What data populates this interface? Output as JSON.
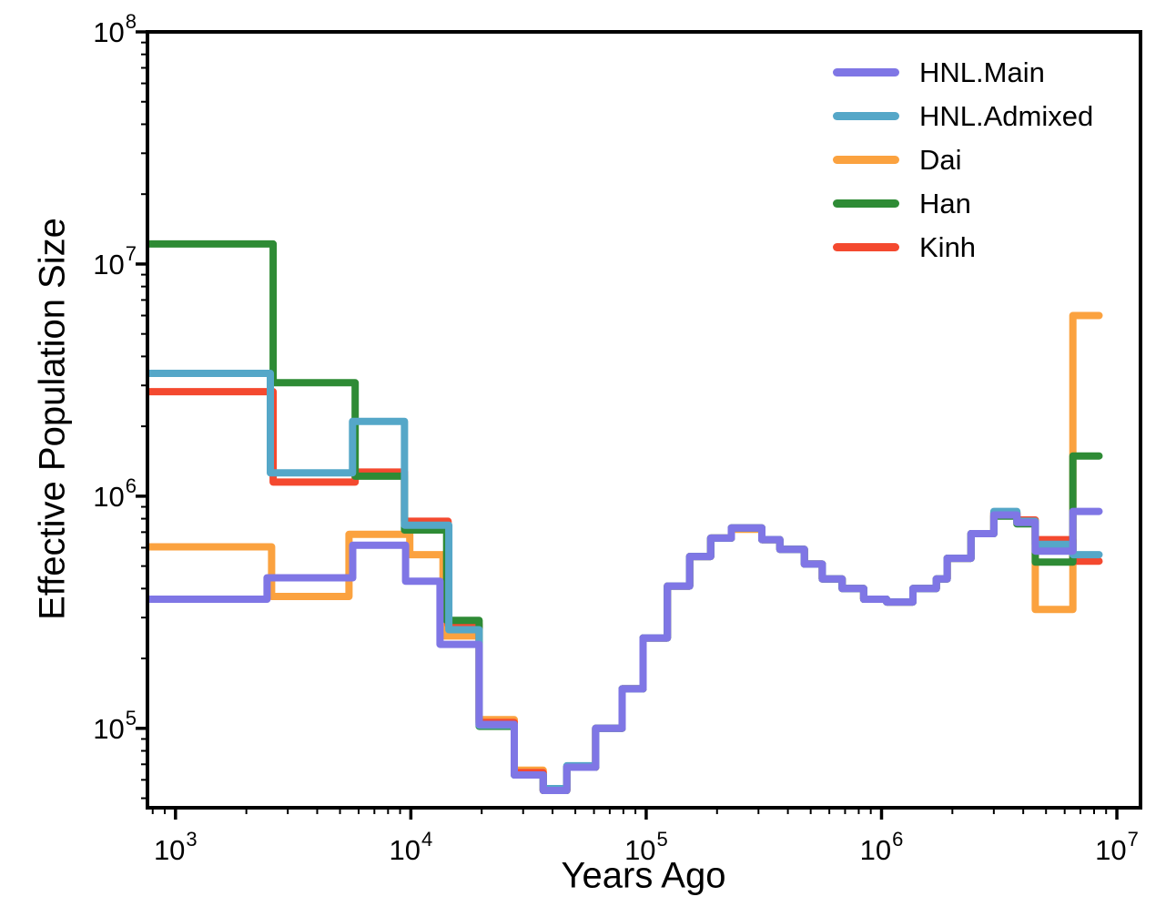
{
  "figure": {
    "background": "#ffffff"
  },
  "chart_data": {
    "type": "line",
    "subtype": "step-after",
    "title": "",
    "xlabel": "Years Ago",
    "ylabel": "Effective Population Size",
    "x_scale": "log",
    "y_scale": "log",
    "grid": false,
    "legend_position": "upper right",
    "xlim": [
      760,
      12600000
    ],
    "ylim": [
      45500,
      100000000
    ],
    "x_major_ticks": [
      1000,
      10000,
      100000,
      1000000,
      10000000
    ],
    "x_tick_labels": [
      {
        "base": "10",
        "exp": "3"
      },
      {
        "base": "10",
        "exp": "4"
      },
      {
        "base": "10",
        "exp": "5"
      },
      {
        "base": "10",
        "exp": "6"
      },
      {
        "base": "10",
        "exp": "7"
      }
    ],
    "y_major_ticks": [
      100000,
      1000000,
      10000000,
      100000000
    ],
    "y_tick_labels": [
      {
        "base": "10",
        "exp": "5"
      },
      {
        "base": "10",
        "exp": "6"
      },
      {
        "base": "10",
        "exp": "7"
      },
      {
        "base": "10",
        "exp": "8"
      }
    ],
    "t_end": 8400000,
    "series": [
      {
        "name": "HNL.Main",
        "color": "#7F76E5",
        "points": [
          [
            760,
            360000
          ],
          [
            2450,
            445000
          ],
          [
            5660,
            615000
          ],
          [
            9500,
            430000
          ],
          [
            13300,
            230000
          ],
          [
            19500,
            104000
          ],
          [
            27500,
            63000
          ],
          [
            36500,
            54000
          ],
          [
            46000,
            68000
          ],
          [
            61000,
            100000
          ],
          [
            79000,
            148000
          ],
          [
            97000,
            245000
          ],
          [
            123000,
            410000
          ],
          [
            153000,
            550000
          ],
          [
            188000,
            660000
          ],
          [
            230000,
            730000
          ],
          [
            310000,
            650000
          ],
          [
            370000,
            590000
          ],
          [
            470000,
            510000
          ],
          [
            560000,
            440000
          ],
          [
            680000,
            400000
          ],
          [
            840000,
            360000
          ],
          [
            1050000,
            350000
          ],
          [
            1360000,
            400000
          ],
          [
            1710000,
            440000
          ],
          [
            1900000,
            540000
          ],
          [
            2400000,
            690000
          ],
          [
            3000000,
            830000
          ],
          [
            3760000,
            770000
          ],
          [
            4500000,
            580000
          ],
          [
            6500000,
            860000
          ]
        ]
      },
      {
        "name": "HNL.Admixed",
        "color": "#55A7C8",
        "points": [
          [
            760,
            3380000
          ],
          [
            2530,
            1260000
          ],
          [
            5650,
            2100000
          ],
          [
            9400,
            750000
          ],
          [
            14500,
            266000
          ],
          [
            19500,
            103000
          ],
          [
            27500,
            63000
          ],
          [
            36500,
            55000
          ],
          [
            46000,
            69000
          ],
          [
            61000,
            100000
          ],
          [
            79000,
            148000
          ],
          [
            97000,
            245000
          ],
          [
            123000,
            410000
          ],
          [
            153000,
            550000
          ],
          [
            188000,
            660000
          ],
          [
            230000,
            730000
          ],
          [
            310000,
            650000
          ],
          [
            370000,
            590000
          ],
          [
            470000,
            510000
          ],
          [
            560000,
            440000
          ],
          [
            680000,
            400000
          ],
          [
            840000,
            360000
          ],
          [
            1050000,
            350000
          ],
          [
            1360000,
            400000
          ],
          [
            1710000,
            440000
          ],
          [
            1900000,
            540000
          ],
          [
            2400000,
            690000
          ],
          [
            3000000,
            860000
          ],
          [
            3760000,
            780000
          ],
          [
            4500000,
            620000
          ],
          [
            6500000,
            560000
          ]
        ]
      },
      {
        "name": "Dai",
        "color": "#FBA23F",
        "points": [
          [
            760,
            605000
          ],
          [
            2560,
            370000
          ],
          [
            5460,
            685000
          ],
          [
            9900,
            560000
          ],
          [
            13700,
            250000
          ],
          [
            19500,
            109000
          ],
          [
            27500,
            66000
          ],
          [
            36500,
            54000
          ],
          [
            46000,
            68000
          ],
          [
            61000,
            100000
          ],
          [
            79000,
            148000
          ],
          [
            97000,
            245000
          ],
          [
            123000,
            410000
          ],
          [
            153000,
            550000
          ],
          [
            188000,
            660000
          ],
          [
            230000,
            720000
          ],
          [
            310000,
            650000
          ],
          [
            370000,
            590000
          ],
          [
            470000,
            510000
          ],
          [
            560000,
            440000
          ],
          [
            680000,
            400000
          ],
          [
            840000,
            360000
          ],
          [
            1050000,
            350000
          ],
          [
            1360000,
            400000
          ],
          [
            1710000,
            440000
          ],
          [
            1900000,
            540000
          ],
          [
            2400000,
            690000
          ],
          [
            3000000,
            850000
          ],
          [
            3760000,
            770000
          ],
          [
            4500000,
            325000
          ],
          [
            6500000,
            6000000
          ]
        ]
      },
      {
        "name": "Han",
        "color": "#2E8B35",
        "points": [
          [
            760,
            12200000
          ],
          [
            2600,
            3080000
          ],
          [
            5800,
            1220000
          ],
          [
            9400,
            715000
          ],
          [
            14200,
            292000
          ],
          [
            19500,
            102000
          ],
          [
            27500,
            63000
          ],
          [
            36500,
            54000
          ],
          [
            46000,
            68000
          ],
          [
            61000,
            100000
          ],
          [
            79000,
            148000
          ],
          [
            97000,
            245000
          ],
          [
            123000,
            410000
          ],
          [
            153000,
            550000
          ],
          [
            188000,
            660000
          ],
          [
            230000,
            730000
          ],
          [
            310000,
            650000
          ],
          [
            370000,
            590000
          ],
          [
            470000,
            510000
          ],
          [
            560000,
            440000
          ],
          [
            680000,
            400000
          ],
          [
            840000,
            360000
          ],
          [
            1050000,
            350000
          ],
          [
            1360000,
            400000
          ],
          [
            1710000,
            440000
          ],
          [
            1900000,
            540000
          ],
          [
            2400000,
            690000
          ],
          [
            3000000,
            820000
          ],
          [
            3760000,
            760000
          ],
          [
            4500000,
            520000
          ],
          [
            6500000,
            1490000
          ]
        ]
      },
      {
        "name": "Kinh",
        "color": "#F4492F",
        "points": [
          [
            760,
            2820000
          ],
          [
            2600,
            1150000
          ],
          [
            5800,
            1270000
          ],
          [
            9400,
            780000
          ],
          [
            14400,
            280000
          ],
          [
            19500,
            106000
          ],
          [
            27500,
            64500
          ],
          [
            36500,
            54000
          ],
          [
            46000,
            68000
          ],
          [
            61000,
            100000
          ],
          [
            79000,
            148000
          ],
          [
            97000,
            245000
          ],
          [
            123000,
            410000
          ],
          [
            153000,
            550000
          ],
          [
            188000,
            660000
          ],
          [
            230000,
            730000
          ],
          [
            310000,
            650000
          ],
          [
            370000,
            590000
          ],
          [
            470000,
            510000
          ],
          [
            560000,
            440000
          ],
          [
            680000,
            400000
          ],
          [
            840000,
            360000
          ],
          [
            1050000,
            350000
          ],
          [
            1360000,
            400000
          ],
          [
            1710000,
            440000
          ],
          [
            1900000,
            540000
          ],
          [
            2400000,
            690000
          ],
          [
            3000000,
            845000
          ],
          [
            3760000,
            790000
          ],
          [
            4500000,
            650000
          ],
          [
            6500000,
            525000
          ]
        ]
      }
    ]
  },
  "legend": {
    "entries": [
      {
        "label": "HNL.Main",
        "color": "#7F76E5"
      },
      {
        "label": "HNL.Admixed",
        "color": "#55A7C8"
      },
      {
        "label": "Dai",
        "color": "#FBA23F"
      },
      {
        "label": "Han",
        "color": "#2E8B35"
      },
      {
        "label": "Kinh",
        "color": "#F4492F"
      }
    ]
  }
}
